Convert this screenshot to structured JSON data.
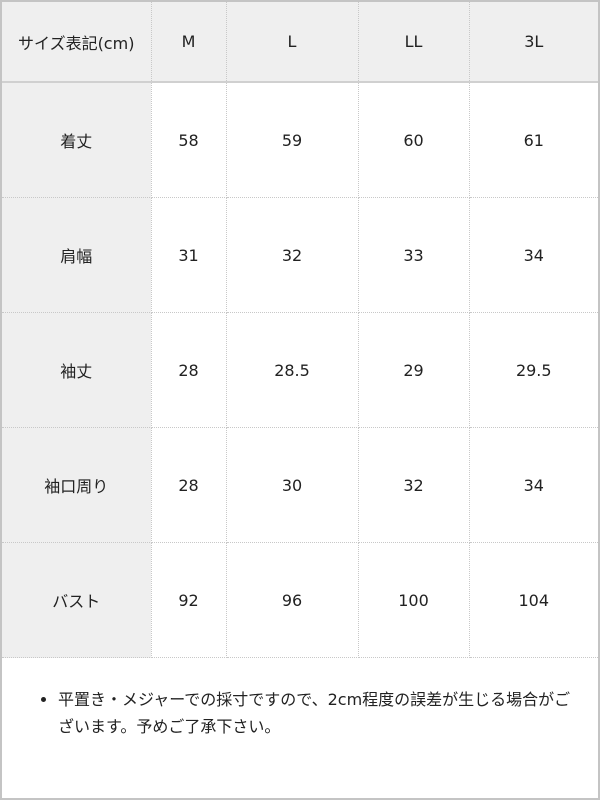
{
  "table": {
    "header": [
      "サイズ表記(cm)",
      "M",
      "L",
      "LL",
      "3L"
    ],
    "rows": [
      {
        "label": "着丈",
        "values": [
          "58",
          "59",
          "60",
          "61"
        ]
      },
      {
        "label": "肩幅",
        "values": [
          "31",
          "32",
          "33",
          "34"
        ]
      },
      {
        "label": "袖丈",
        "values": [
          "28",
          "28.5",
          "29",
          "29.5"
        ]
      },
      {
        "label": "袖口周り",
        "values": [
          "28",
          "30",
          "32",
          "34"
        ]
      },
      {
        "label": "バスト",
        "values": [
          "92",
          "96",
          "100",
          "104"
        ]
      }
    ]
  },
  "note": "平置き・メジャーでの採寸ですので、2cm程度の誤差が生じる場合がございます。予めご了承下さい。"
}
